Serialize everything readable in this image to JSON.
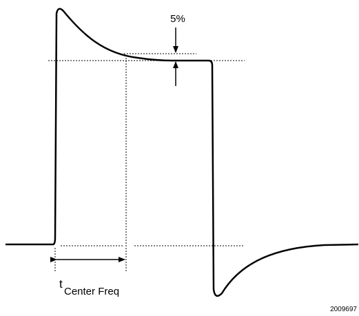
{
  "annotations": {
    "percent": "5%",
    "time_symbol": "t",
    "time_subscript": "Center Freq",
    "figure_id": "2009697"
  }
}
